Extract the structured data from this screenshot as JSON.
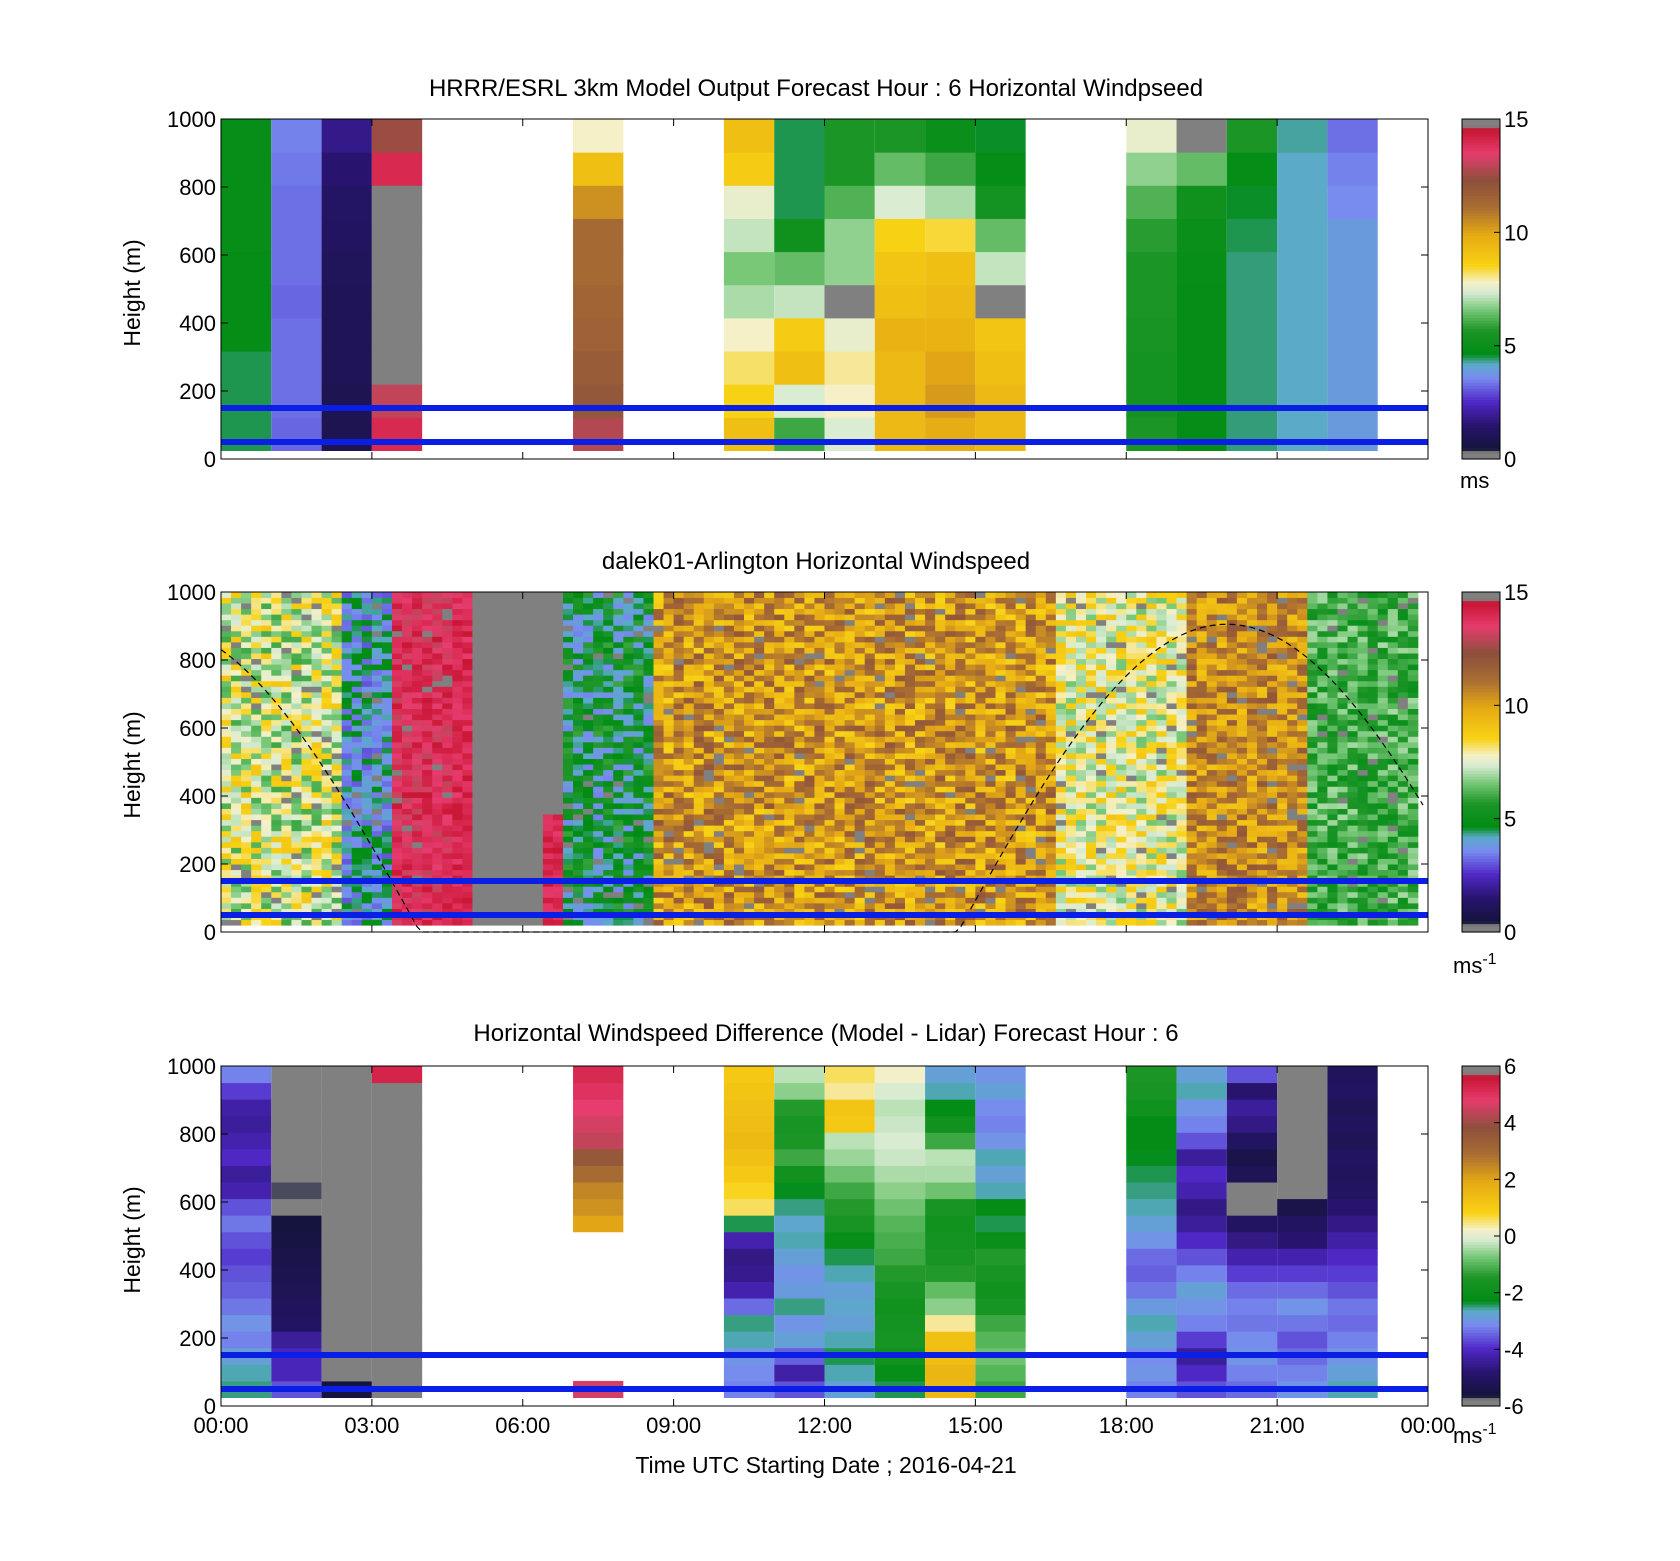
{
  "chart_data": [
    {
      "type": "heatmap",
      "title": "HRRR/ESRL 3km Model Output   Forecast Hour : 6 Horizontal Windpseed",
      "ylabel": "Height (m)",
      "ylim": [
        0,
        1000
      ],
      "yticks": [
        "0",
        "200",
        "400",
        "600",
        "800",
        "1000"
      ],
      "xlim_hours": [
        0,
        24
      ],
      "colorbar": {
        "min": 0,
        "max": 15,
        "ticks": [
          "0",
          "5",
          "10",
          "15"
        ],
        "units": "ms"
      },
      "reference_lines_m": [
        50,
        150
      ],
      "columns": [
        {
          "hour": 0,
          "speeds": [
            4.5,
            4.5,
            4.5,
            4.8,
            4.8,
            4.8,
            4.9,
            4.9,
            4.9,
            4.9
          ]
        },
        {
          "hour": 1,
          "speeds": [
            3.2,
            3.3,
            3.3,
            3.3,
            3.2,
            3.3,
            3.3,
            3.3,
            3.4,
            3.5
          ]
        },
        {
          "hour": 2,
          "speeds": [
            0.9,
            0.9,
            1.0,
            1.0,
            1.0,
            1.1,
            1.2,
            1.3,
            1.5,
            1.8
          ]
        },
        {
          "hour": 3,
          "speeds": [
            14,
            13,
            0.1,
            0.1,
            0.1,
            0.1,
            0.1,
            0.1,
            14,
            12.5
          ]
        },
        {
          "hour": 7,
          "speeds": [
            12.8,
            12,
            11.8,
            11.6,
            11.5,
            11.3,
            11.3,
            10.4,
            9.2,
            7.8
          ]
        },
        {
          "hour": 10,
          "speeds": [
            9.2,
            8.6,
            8.2,
            7.8,
            7,
            6.6,
            7.2,
            7.6,
            8.8,
            9.2
          ]
        },
        {
          "hour": 11,
          "speeds": [
            6,
            7.4,
            9.2,
            8.8,
            7.2,
            6.4,
            5.2,
            4.5,
            4.5,
            4.5
          ]
        },
        {
          "hour": 12,
          "speeds": [
            7.4,
            7.8,
            8,
            7.6,
            0.1,
            6.8,
            6.8,
            6.2,
            5.6,
            5.6
          ]
        },
        {
          "hour": 13,
          "speeds": [
            9.4,
            9.4,
            9.4,
            9.6,
            9.2,
            9,
            8.6,
            7.4,
            6.4,
            5.6
          ]
        },
        {
          "hour": 14,
          "speeds": [
            9.8,
            10.2,
            10,
            9.6,
            9.4,
            9.2,
            8.4,
            7,
            6,
            5
          ]
        },
        {
          "hour": 15,
          "speeds": [
            9.4,
            9.4,
            9.2,
            9,
            0.1,
            7.2,
            6.4,
            5.4,
            4.8,
            4.6
          ]
        },
        {
          "hour": 18,
          "speeds": [
            5.6,
            5.4,
            5.4,
            5.5,
            5.6,
            5.6,
            5.8,
            6.2,
            6.8,
            7.6
          ]
        },
        {
          "hour": 19,
          "speeds": [
            4.8,
            4.8,
            4.8,
            4.8,
            4.8,
            4.9,
            5,
            5.2,
            6.4,
            0.1
          ]
        },
        {
          "hour": 20,
          "speeds": [
            4.4,
            4.4,
            4.4,
            4.4,
            4.4,
            4.4,
            4.5,
            4.6,
            4.8,
            5.6
          ]
        },
        {
          "hour": 21,
          "speeds": [
            4.2,
            4.2,
            4.2,
            4.2,
            4.2,
            4.2,
            4.2,
            4.2,
            4.2,
            4.3
          ]
        },
        {
          "hour": 22,
          "speeds": [
            3.9,
            3.9,
            3.9,
            3.9,
            3.9,
            3.9,
            3.9,
            3.6,
            3.5,
            3.3
          ]
        }
      ]
    },
    {
      "type": "heatmap",
      "title": "dalek01-Arlington  Horizontal Windspeed",
      "ylabel": "Height (m)",
      "ylim": [
        0,
        1000
      ],
      "yticks": [
        "0",
        "200",
        "400",
        "600",
        "800",
        "1000"
      ],
      "xlim_hours": [
        0,
        24
      ],
      "colorbar": {
        "min": 0,
        "max": 15,
        "ticks": [
          "0",
          "5",
          "10",
          "15"
        ],
        "units": "ms",
        "units_exp": "-1"
      },
      "reference_lines_m": [
        50,
        150
      ],
      "dashed_curve": "boundary layer height estimate",
      "regimes": [
        {
          "hours": [
            0,
            2.4
          ],
          "speed_low": 6.0,
          "speed_high": 9.0
        },
        {
          "hours": [
            2.4,
            3.3
          ],
          "speed_low": 3.0,
          "speed_high": 5.0
        },
        {
          "hours": [
            3.3,
            4.6
          ],
          "speed_low": 13.0,
          "speed_high": 14.5
        },
        {
          "hours": [
            4.6,
            6.8
          ],
          "speed_low": null,
          "speed_high": null
        },
        {
          "hours": [
            6.8,
            8.5
          ],
          "speed_low": 3.5,
          "speed_high": 6.0
        },
        {
          "hours": [
            8.5,
            16.5
          ],
          "speed_low": 8.5,
          "speed_high": 12.0
        },
        {
          "hours": [
            16.5,
            19
          ],
          "speed_low": 6.5,
          "speed_high": 9.0
        },
        {
          "hours": [
            19,
            21.5
          ],
          "speed_low": 9.0,
          "speed_high": 12.0
        },
        {
          "hours": [
            21.5,
            24
          ],
          "speed_low": 5.0,
          "speed_high": 7.0
        }
      ]
    },
    {
      "type": "heatmap",
      "title": "Horizontal Windspeed Difference (Model - Lidar) Forecast Hour : 6",
      "ylabel": "Height (m)",
      "xlabel": "Time UTC  Starting Date ; 2016-04-21",
      "ylim": [
        0,
        1000
      ],
      "yticks": [
        "0",
        "200",
        "400",
        "600",
        "800",
        "1000"
      ],
      "xticks": [
        "00:00",
        "03:00",
        "06:00",
        "09:00",
        "12:00",
        "15:00",
        "18:00",
        "21:00",
        "00:00"
      ],
      "xlim_hours": [
        0,
        24
      ],
      "colorbar": {
        "min": -6,
        "max": 6,
        "ticks": [
          "-6",
          "-4",
          "-2",
          "0",
          "2",
          "4",
          "6"
        ],
        "units": "ms",
        "units_exp": "-1"
      },
      "reference_lines_m": [
        50,
        150
      ],
      "columns": [
        {
          "hour": 0,
          "diffs": [
            -2.5,
            -2.6,
            -2.8,
            -3.2,
            -3.0,
            -3.3,
            -3.5,
            -3.6,
            -3.8,
            -3.6,
            -3.3,
            -3.6,
            -4.2,
            -4.4,
            -4.0,
            -4.2,
            -4.4,
            -4.3,
            -3.8,
            -3.2
          ]
        },
        {
          "hour": 1,
          "diffs": [
            -3.6,
            -4.1,
            -4.1,
            -4.4,
            -5.0,
            -5.1,
            -5.2,
            -5.3,
            -5.4,
            -5.5,
            -5.6,
            -5.8,
            -5.7,
            -5.9,
            -5.8,
            null,
            null,
            null,
            null,
            -5.8
          ]
        },
        {
          "hour": 2,
          "diffs": [
            -5.6,
            -5.8,
            -5.9,
            -5.9,
            null,
            null,
            null,
            null,
            null,
            null,
            null,
            null,
            null,
            null,
            null,
            null,
            null,
            null,
            null,
            null
          ]
        },
        {
          "hour": 3,
          "diffs": [
            null,
            null,
            null,
            null,
            null,
            null,
            null,
            null,
            null,
            null,
            null,
            null,
            null,
            null,
            null,
            null,
            null,
            null,
            null,
            5.3
          ]
        },
        {
          "hour": 7,
          "diffs": [
            4.6,
            null,
            null,
            null,
            null,
            null,
            null,
            null,
            null,
            null,
            2.0,
            2.3,
            2.5,
            3.0,
            3.6,
            4.4,
            4.6,
            4.8,
            5.0,
            5.2
          ]
        },
        {
          "hour": 10,
          "diffs": [
            -3.2,
            -3.1,
            -3.0,
            -2.6,
            -2.5,
            -3.4,
            -4.2,
            -4.5,
            -4.6,
            -4.2,
            -2.4,
            0.6,
            0.8,
            1.1,
            1.3,
            1.5,
            1.4,
            1.3,
            1.2,
            1.1
          ]
        },
        {
          "hour": 11,
          "diffs": [
            -3.6,
            -4.3,
            -3.5,
            -2.8,
            -3.0,
            -2.5,
            -2.9,
            -3.0,
            -2.8,
            -2.6,
            -2.7,
            -2.5,
            -2.3,
            -1.8,
            -1.2,
            -1.5,
            -1.6,
            -1.4,
            -0.6,
            -0.3
          ]
        },
        {
          "hour": 12,
          "diffs": [
            -2.8,
            -2.6,
            -2.4,
            -2.6,
            -2.8,
            -2.7,
            -2.8,
            -2.6,
            -2.4,
            -2.1,
            -1.6,
            -1.4,
            -1.2,
            -0.8,
            -0.5,
            -0.3,
            1.1,
            1.2,
            0.4,
            0.6
          ]
        },
        {
          "hour": 13,
          "diffs": [
            -2.4,
            -2.1,
            -1.8,
            -1.6,
            -1.7,
            -1.8,
            -1.6,
            -1.4,
            -1.2,
            -1.1,
            -1.0,
            -0.8,
            -0.6,
            -0.4,
            -0.2,
            -0.1,
            -0.2,
            -0.3,
            -0.1,
            0.2
          ]
        },
        {
          "hour": 14,
          "diffs": [
            1.5,
            1.6,
            1.4,
            1.3,
            0.4,
            -0.6,
            -0.9,
            -1.4,
            -1.6,
            -1.7,
            -1.8,
            -1.6,
            -0.8,
            -0.4,
            -0.3,
            -1.2,
            -1.8,
            -2.2,
            -2.6,
            -2.8
          ]
        },
        {
          "hour": 15,
          "diffs": [
            -1.2,
            -1.0,
            -0.8,
            -1.0,
            -1.2,
            -1.6,
            -1.8,
            -1.6,
            -1.4,
            -2.0,
            -2.4,
            -2.2,
            -2.6,
            -2.8,
            -2.6,
            -3.0,
            -3.2,
            -3.1,
            -2.8,
            -3.0
          ]
        },
        {
          "hour": 18,
          "diffs": [
            -3.2,
            -3.0,
            -3.1,
            -2.8,
            -2.6,
            -2.9,
            -3.3,
            -3.5,
            -3.4,
            -3.0,
            -2.8,
            -2.6,
            -2.5,
            -2.4,
            -2.3,
            -2.2,
            -2.2,
            -1.8,
            -1.6,
            -1.5
          ]
        },
        {
          "hour": 19,
          "diffs": [
            -3.6,
            -4.0,
            -4.4,
            -3.8,
            -3.2,
            -3.0,
            -2.8,
            -3.2,
            -3.6,
            -4.0,
            -4.4,
            -4.6,
            -4.2,
            -4.0,
            -4.4,
            -3.6,
            -3.2,
            -3.0,
            -2.6,
            -2.8
          ]
        },
        {
          "hour": 20,
          "diffs": [
            -3.4,
            -3.2,
            -3.0,
            -3.1,
            -3.3,
            -3.2,
            -3.4,
            -3.8,
            -4.2,
            -4.6,
            -5.0,
            null,
            null,
            -5.2,
            -5.4,
            -5.0,
            -4.6,
            -4.4,
            -4.8,
            -3.6
          ]
        },
        {
          "hour": 21,
          "diffs": [
            -3.0,
            -3.2,
            -3.4,
            -3.6,
            -3.3,
            -3.0,
            -3.4,
            -3.8,
            -4.2,
            -4.8,
            -5.0,
            -5.4,
            -5.8,
            null,
            null,
            null,
            null,
            null,
            null,
            null
          ]
        },
        {
          "hour": 22,
          "diffs": [
            -2.6,
            -2.8,
            -3.0,
            -3.2,
            -3.4,
            -3.3,
            -3.6,
            -3.8,
            -4.0,
            -4.3,
            -4.6,
            -4.8,
            -5.0,
            -5.1,
            -5.0,
            -5.2,
            -5.1,
            -5.2,
            -5.0,
            -5.1
          ]
        }
      ]
    }
  ]
}
